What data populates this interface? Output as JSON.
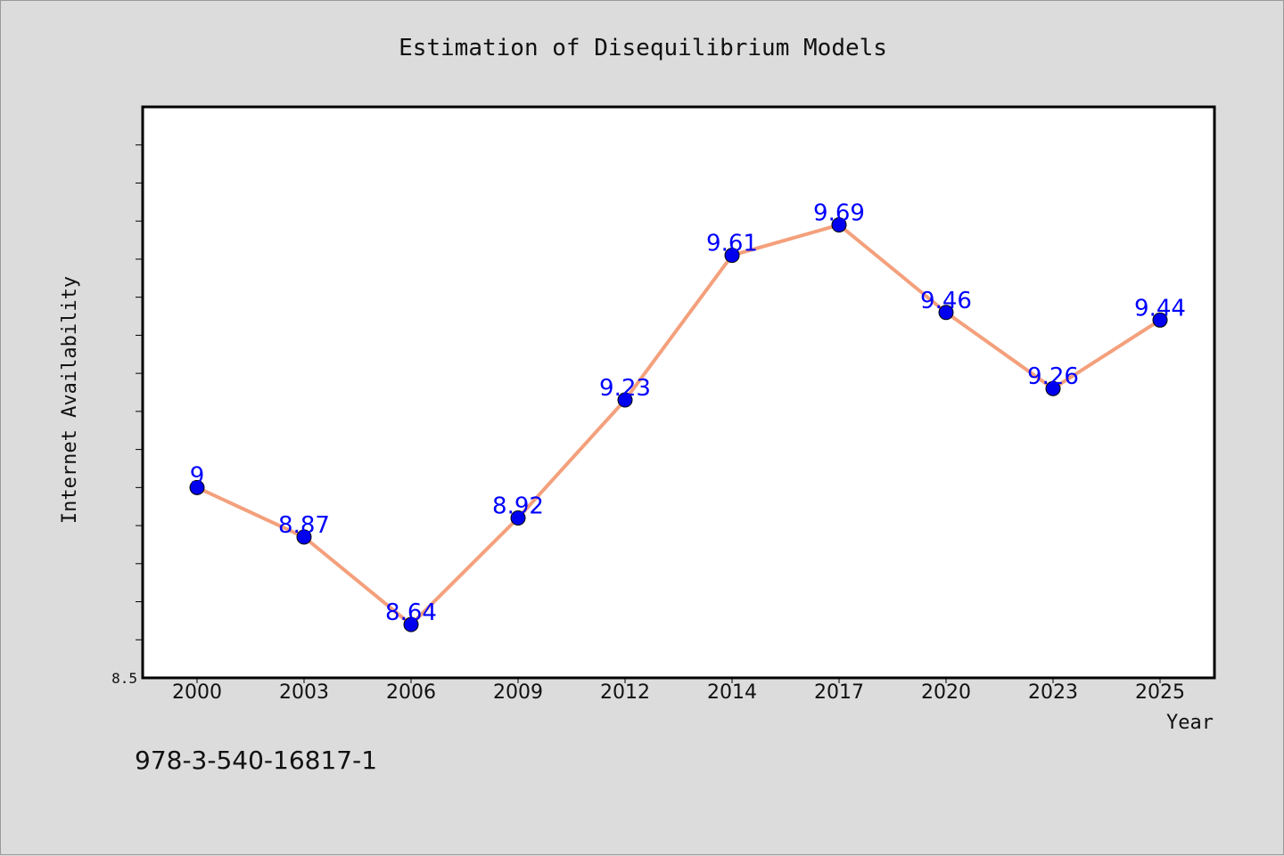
{
  "chart_data": {
    "type": "line",
    "title": "Estimation of Disequilibrium Models",
    "xlabel": "Year",
    "ylabel": "Internet Availability",
    "categories": [
      "2000",
      "2003",
      "2006",
      "2009",
      "2012",
      "2014",
      "2017",
      "2020",
      "2023",
      "2025"
    ],
    "series": [
      {
        "values": [
          9,
          8.87,
          8.64,
          8.92,
          9.23,
          9.61,
          9.69,
          9.46,
          9.26,
          9.44
        ],
        "labels": [
          "9",
          "8.87",
          "8.64",
          "8.92",
          "9.23",
          "9.61",
          "9.69",
          "9.46",
          "9.26",
          "9.44"
        ],
        "line_color": "#f4a07c",
        "marker_color": "#0000ee",
        "label_color": "#0000ff"
      }
    ],
    "ylim": [
      8.5,
      10
    ],
    "yticks_labeled": [
      "8.5"
    ],
    "grid": false,
    "legend": "none"
  },
  "footer": {
    "isbn": "978-3-540-16817-1"
  }
}
